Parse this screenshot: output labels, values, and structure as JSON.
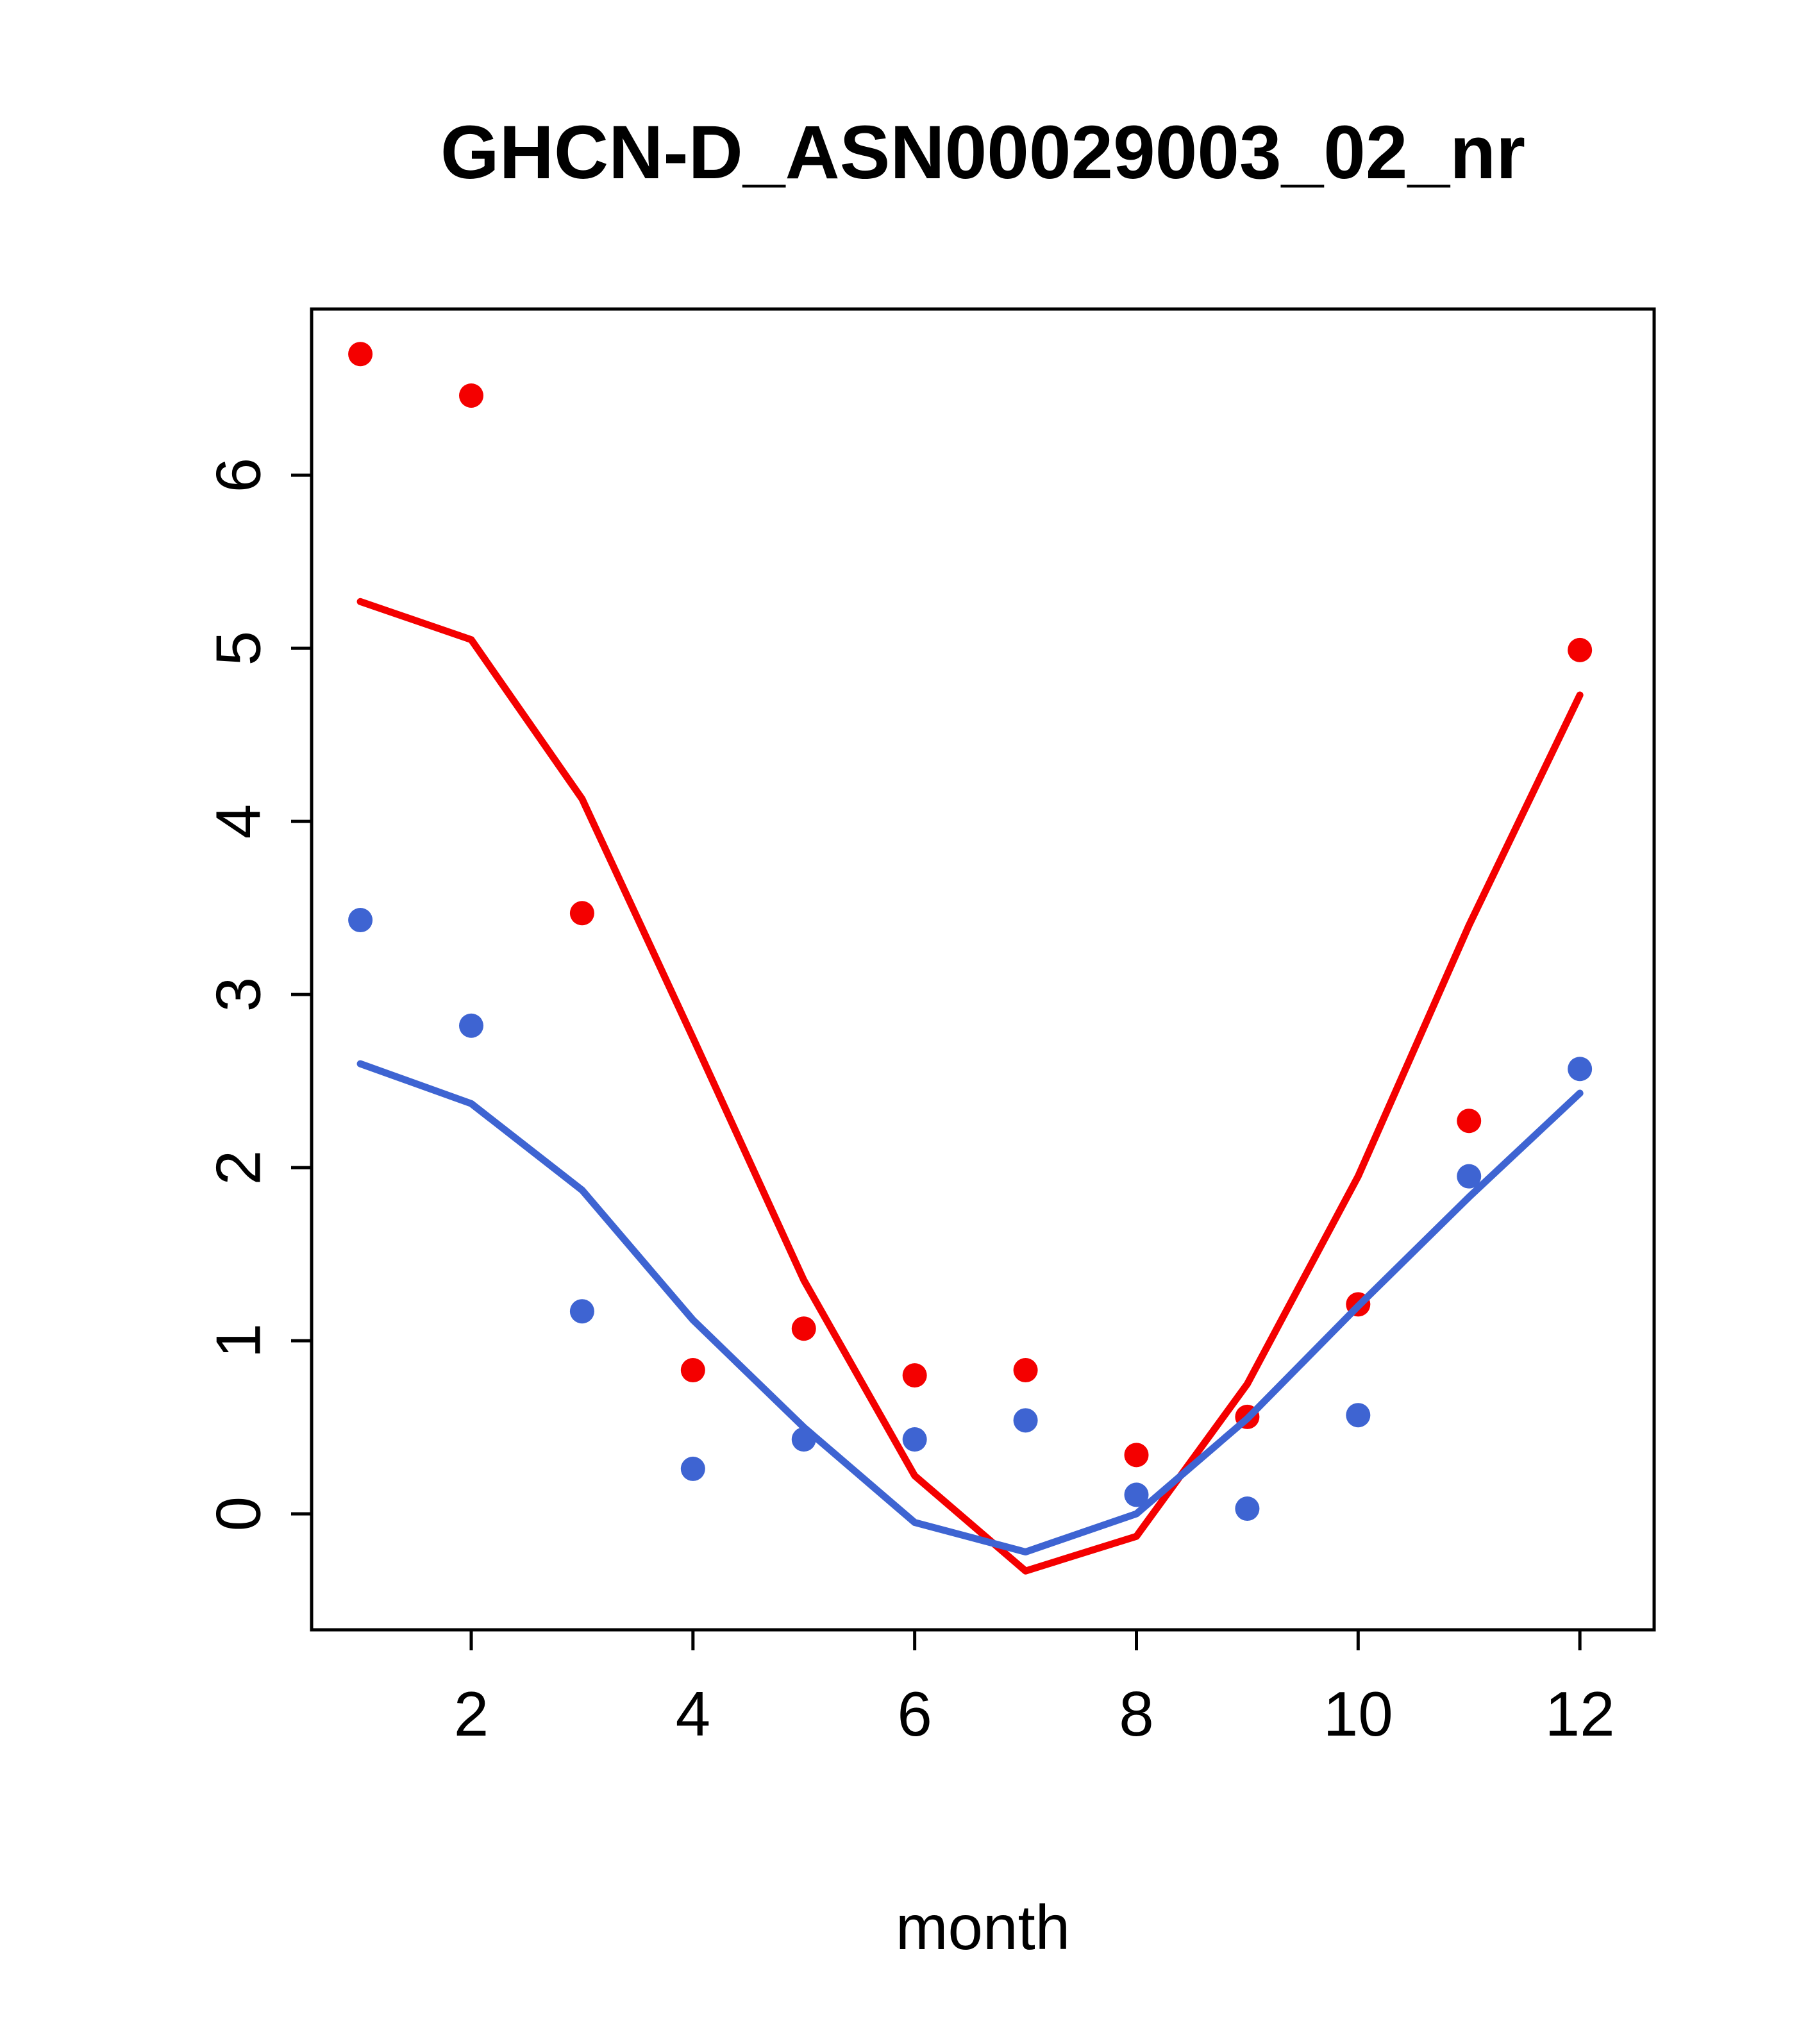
{
  "chart_data": {
    "type": "line",
    "title": "GHCN-D_ASN00029003_02_nr",
    "xlabel": "month",
    "ylabel": "",
    "x": [
      1,
      2,
      3,
      4,
      5,
      6,
      7,
      8,
      9,
      10,
      11,
      12
    ],
    "xlim": [
      0.56,
      12.67
    ],
    "ylim": [
      -0.67,
      6.96
    ],
    "x_ticks": [
      2,
      4,
      6,
      8,
      10,
      12
    ],
    "y_ticks": [
      0,
      1,
      2,
      3,
      4,
      5,
      6
    ],
    "grid": false,
    "legend": "none",
    "colors": {
      "red": "#F40000",
      "blue": "#3E64D2"
    },
    "series": [
      {
        "name": "red-points",
        "kind": "scatter",
        "color": "#F40000",
        "values": [
          6.7,
          6.46,
          3.47,
          0.83,
          1.07,
          0.8,
          0.83,
          0.34,
          0.56,
          1.21,
          2.27,
          4.99
        ]
      },
      {
        "name": "red-line",
        "kind": "line",
        "color": "#F40000",
        "values": [
          5.27,
          5.05,
          4.13,
          2.75,
          1.35,
          0.22,
          -0.33,
          -0.13,
          0.75,
          1.95,
          3.4,
          4.73
        ]
      },
      {
        "name": "blue-points",
        "kind": "scatter",
        "color": "#3E64D2",
        "values": [
          3.43,
          2.82,
          1.17,
          0.26,
          0.43,
          0.43,
          0.54,
          0.11,
          0.03,
          0.57,
          1.95,
          2.57
        ]
      },
      {
        "name": "blue-line",
        "kind": "line",
        "color": "#3E64D2",
        "values": [
          2.6,
          2.37,
          1.87,
          1.12,
          0.5,
          -0.05,
          -0.22,
          0.0,
          0.55,
          1.2,
          1.83,
          2.43
        ]
      }
    ]
  }
}
